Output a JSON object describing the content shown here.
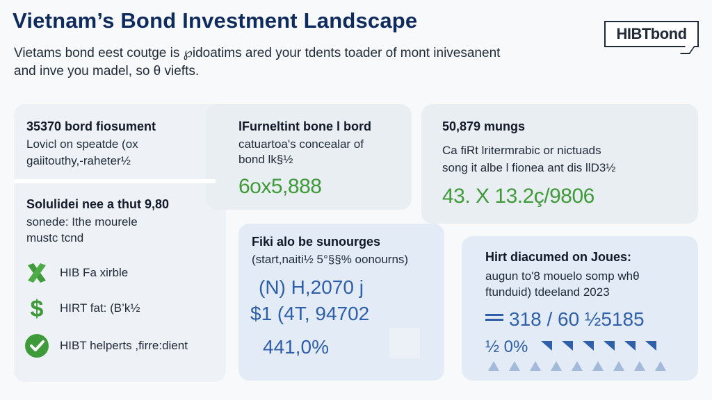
{
  "header": {
    "title": "Vietnam’s Bond Investment Landscape",
    "subtitle_line1": "Vietams bond eest coutge is ℘idoatims ared your tdents toader of mont inivesanent",
    "subtitle_line2": "and inve you madel, so θ viefts.",
    "logo_text": "HIBTbond"
  },
  "card1": {
    "heading": "35370 bord fiosument",
    "line1": "Lovicl on speatde (ox",
    "line2": "gaiitouthy,-raheter½"
  },
  "card2": {
    "heading": "lFurneltint bone l bord",
    "line1": "catuartoa's concealar of",
    "line2": "bond lk§½",
    "big_value": "6ox5,888"
  },
  "card3": {
    "heading": "50,879 mungs",
    "line1": "Ca fiRt lritermrabic or nictuads",
    "line2": "song it albe l fionea ant dis llD3½",
    "big_value": "43. X 13.2ç/9806"
  },
  "card4": {
    "heading": "Solulidei nee a thut 9,80",
    "line1": "sonede: Ithe mourele",
    "line2": "mustc tcnd",
    "items": [
      {
        "icon": "x-mark-icon",
        "label": "HIB Fa xirble"
      },
      {
        "icon": "dollar-icon",
        "label": "HIRT fat: (B’k½"
      },
      {
        "icon": "check-circle-icon",
        "label": "HIBT helperts ,firre:dient"
      }
    ]
  },
  "card5": {
    "heading": "Fiki alo be sunourges",
    "line1": "(start,naiti½ 5°§§% oonourns)",
    "value1": "(N) H,2070 j",
    "value2": "$1 (4T, 94702",
    "value3": "441,0%"
  },
  "card6": {
    "heading": "Hirt diacumed on Joues:",
    "line1": "augun to'8 mouelo somp whθ",
    "line2": "ftunduid) tdeeland 2023",
    "value1": "318 / 60 ½5185",
    "value2": "½ 0%"
  },
  "colors": {
    "title": "#0f2a5c",
    "green": "#3f9a3a",
    "blue": "#2f5fa8"
  }
}
